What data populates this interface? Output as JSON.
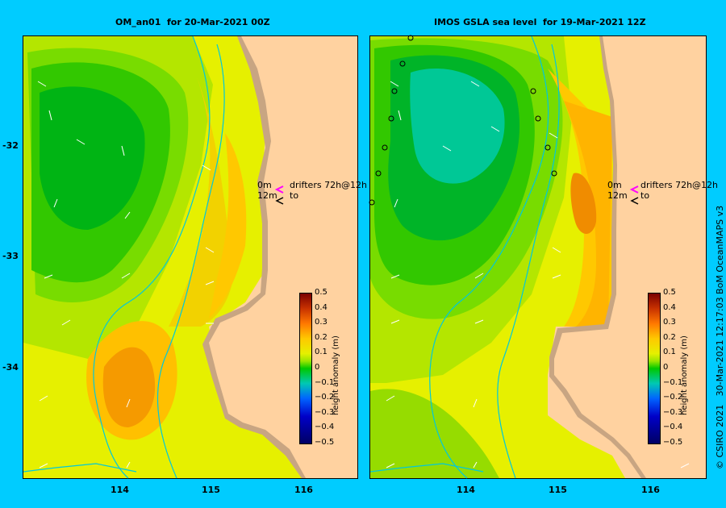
{
  "left_panel": {
    "title": "OM_an01  for 20-Mar-2021 00Z",
    "legend": {
      "line1": "0m",
      "line2": "12m",
      "label1": "drifters 72h@12h",
      "label2": "to"
    },
    "colorbar": {
      "labels": [
        "0.5",
        "0.4",
        "0.3",
        "0.2",
        "0.1",
        "0",
        "−0.1",
        "−0.2",
        "−0.3",
        "−0.4",
        "−0.5"
      ],
      "title": "height anomaly (m)"
    }
  },
  "right_panel": {
    "title": "IMOS GSLA sea level  for 19-Mar-2021 12Z",
    "legend": {
      "line1": "0m",
      "line2": "12m",
      "label1": "drifters 72h@12h",
      "label2": "to"
    },
    "colorbar": {
      "labels": [
        "0.5",
        "0.4",
        "0.3",
        "0.2",
        "0.1",
        "0",
        "−0.1",
        "−0.2",
        "−0.3",
        "−0.4",
        "−0.5"
      ],
      "title": "height anomaly (m)"
    }
  },
  "axes": {
    "lat_ticks": [
      "-32",
      "-33",
      "-34"
    ],
    "lon_ticks_left": [
      "114",
      "115",
      "116"
    ],
    "lon_ticks_right": [
      "114",
      "115",
      "116"
    ]
  },
  "credit": "© CSIRO 2021   30-Mar-2021 12:17:03 BoM OceanMAPS v3",
  "colors": {
    "background": "#00ccff",
    "land": "#ffd2a0",
    "shelf": "#c8a582",
    "drifter_arrow": "#ff00ff"
  }
}
